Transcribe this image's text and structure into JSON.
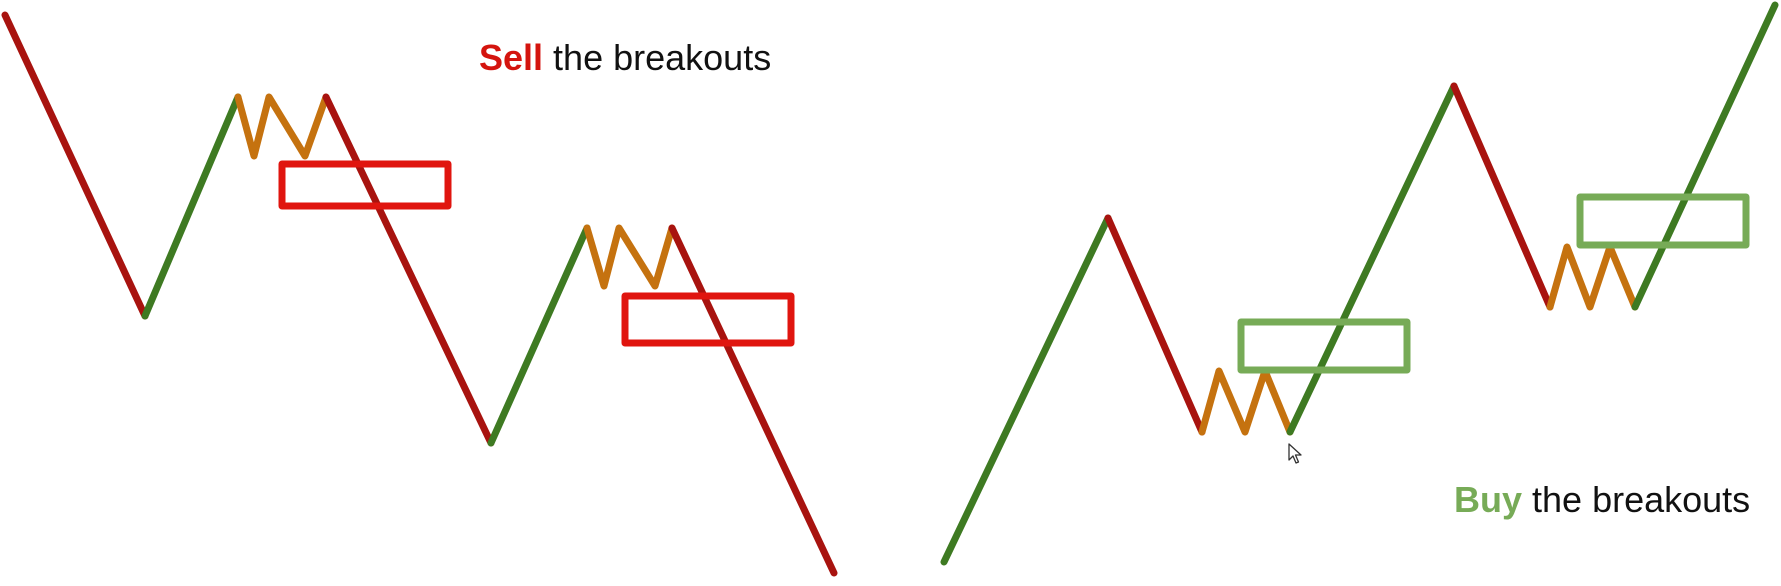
{
  "sell_caption": {
    "keyword": "Sell",
    "rest": " the breakouts"
  },
  "buy_caption": {
    "keyword": "Buy",
    "rest": " the breakouts"
  },
  "colors": {
    "down_leg": "#a8130f",
    "up_leg": "#3e7a22",
    "consolidation": "#c5720f",
    "sell_zone": "#e0150f",
    "buy_zone": "#77ab57",
    "sell_word": "#d4140e",
    "buy_word": "#77ab57"
  },
  "icons": {
    "pointer": "mouse-pointer-icon"
  }
}
